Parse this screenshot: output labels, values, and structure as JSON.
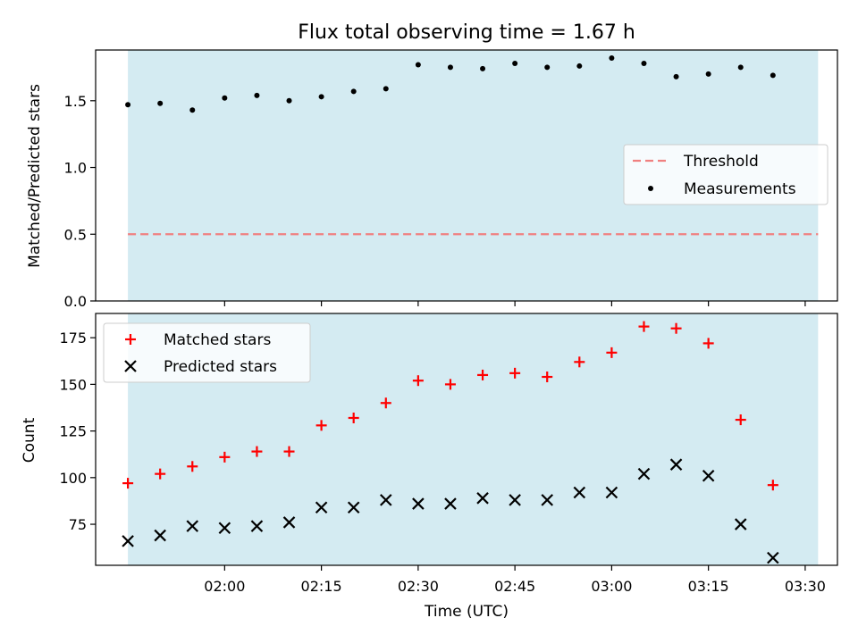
{
  "colors": {
    "shade": "#add8e6",
    "threshold": "#f08080",
    "measurements": "#000000",
    "matched": "#ff0000",
    "predicted": "#000000"
  },
  "chart_data": [
    {
      "type": "scatter",
      "title": "Flux total observing time = 1.67 h",
      "xlabel": "",
      "ylabel": "Matched/Predicted stars",
      "ylim": [
        0,
        1.88
      ],
      "yticks": [
        0.0,
        0.5,
        1.0,
        1.5
      ],
      "ytick_labels": [
        "0.0",
        "0.5",
        "1.0",
        "1.5"
      ],
      "shaded_span": [
        "01:45",
        "03:32"
      ],
      "legend": {
        "placement": "center-right",
        "entries": [
          "Threshold",
          "Measurements"
        ]
      },
      "threshold": {
        "name": "Threshold",
        "style": "dashed",
        "value": 0.5
      },
      "series": [
        {
          "name": "Measurements",
          "marker": "dot",
          "x": [
            "01:45",
            "01:50",
            "01:55",
            "02:00",
            "02:05",
            "02:10",
            "02:15",
            "02:20",
            "02:25",
            "02:30",
            "02:35",
            "02:40",
            "02:45",
            "02:50",
            "02:55",
            "03:00",
            "03:05",
            "03:10",
            "03:15",
            "03:20",
            "03:25",
            "03:30"
          ],
          "values": [
            1.47,
            1.48,
            1.43,
            1.52,
            1.54,
            1.5,
            1.53,
            1.57,
            1.59,
            1.77,
            1.75,
            1.74,
            1.78,
            1.75,
            1.76,
            1.82,
            1.78,
            1.68,
            1.7,
            1.75,
            1.69,
            null
          ]
        }
      ]
    },
    {
      "type": "scatter",
      "xlabel": "Time (UTC)",
      "ylabel": "Count",
      "xlim": [
        "01:40",
        "03:35"
      ],
      "ylim": [
        53,
        188
      ],
      "xticks": [
        "02:00",
        "02:15",
        "02:30",
        "02:45",
        "03:00",
        "03:15",
        "03:30"
      ],
      "yticks": [
        75,
        100,
        125,
        150,
        175
      ],
      "ytick_labels": [
        "75",
        "100",
        "125",
        "150",
        "175"
      ],
      "shaded_span": [
        "01:45",
        "03:32"
      ],
      "legend": {
        "placement": "top-left",
        "entries": [
          "Matched stars",
          "Predicted stars"
        ]
      },
      "series": [
        {
          "name": "Matched stars",
          "marker": "plus",
          "x": [
            "01:45",
            "01:50",
            "01:55",
            "02:00",
            "02:05",
            "02:10",
            "02:15",
            "02:20",
            "02:25",
            "02:30",
            "02:35",
            "02:40",
            "02:45",
            "02:50",
            "02:55",
            "03:00",
            "03:05",
            "03:10",
            "03:15",
            "03:20",
            "03:25",
            "03:30"
          ],
          "values": [
            97,
            102,
            106,
            111,
            114,
            114,
            128,
            132,
            140,
            152,
            150,
            155,
            156,
            154,
            162,
            167,
            181,
            180,
            172,
            131,
            96,
            null
          ]
        },
        {
          "name": "Predicted stars",
          "marker": "x",
          "x": [
            "01:45",
            "01:50",
            "01:55",
            "02:00",
            "02:05",
            "02:10",
            "02:15",
            "02:20",
            "02:25",
            "02:30",
            "02:35",
            "02:40",
            "02:45",
            "02:50",
            "02:55",
            "03:00",
            "03:05",
            "03:10",
            "03:15",
            "03:20",
            "03:25",
            "03:30"
          ],
          "values": [
            66,
            69,
            74,
            73,
            74,
            76,
            84,
            84,
            88,
            86,
            86,
            89,
            88,
            88,
            92,
            92,
            102,
            107,
            101,
            75,
            57,
            null
          ]
        }
      ]
    }
  ]
}
